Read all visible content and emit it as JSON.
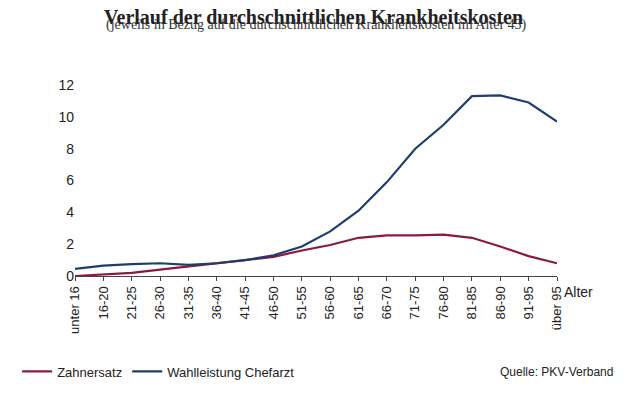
{
  "chart_data": {
    "type": "line",
    "title": "Verlauf der durchschnittlichen Krankheitskosten",
    "subtitle": "(jeweils in Bezug auf die durchschnittlichen Krankheitskosten im Alter 43)",
    "x_label": "Alter",
    "source": "Quelle: PKV-Verband",
    "categories": [
      "unter 16",
      "16-20",
      "21-25",
      "26-30",
      "31-35",
      "36-40",
      "41-45",
      "46-50",
      "51-55",
      "56-60",
      "61-65",
      "66-70",
      "71-75",
      "76-80",
      "81-85",
      "86-90",
      "91-95",
      "über 95"
    ],
    "series": [
      {
        "name": "Zahnersatz",
        "color": "#8b1a3c",
        "values": [
          0.0,
          0.1,
          0.2,
          0.4,
          0.6,
          0.8,
          1.0,
          1.2,
          1.6,
          1.95,
          2.4,
          2.55,
          2.55,
          2.6,
          2.4,
          1.85,
          1.25,
          0.8
        ]
      },
      {
        "name": "Wahlleistung Chefarzt",
        "color": "#1f3d6e",
        "values": [
          0.45,
          0.65,
          0.75,
          0.8,
          0.7,
          0.8,
          1.0,
          1.3,
          1.85,
          2.8,
          4.1,
          5.9,
          8.0,
          9.5,
          11.3,
          11.35,
          10.9,
          9.7
        ]
      }
    ],
    "ylim": [
      0,
      12
    ],
    "yticks": [
      0,
      2,
      4,
      6,
      8,
      10,
      12
    ],
    "grid": false,
    "legend": "bottom left"
  }
}
